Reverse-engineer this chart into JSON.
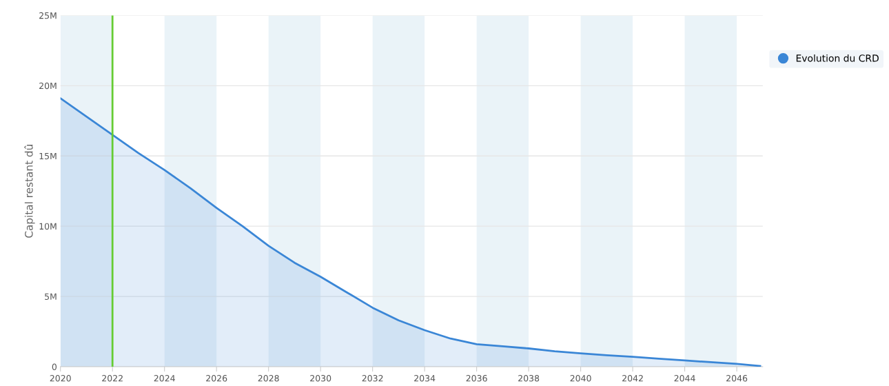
{
  "chart_data": {
    "type": "area",
    "ylabel": "Capital restant dû",
    "x": [
      2020,
      2021,
      2022,
      2023,
      2024,
      2025,
      2026,
      2027,
      2028,
      2029,
      2030,
      2031,
      2032,
      2033,
      2034,
      2035,
      2036,
      2037,
      2038,
      2039,
      2040,
      2041,
      2042,
      2043,
      2044,
      2045,
      2046,
      2046.9
    ],
    "series": [
      {
        "name": "Evolution du CRD",
        "color": "#3a86d6",
        "values": [
          19.1,
          17.8,
          16.5,
          15.2,
          14.0,
          12.7,
          11.3,
          10.0,
          8.6,
          7.4,
          6.4,
          5.3,
          4.2,
          3.3,
          2.6,
          2.0,
          1.6,
          1.45,
          1.3,
          1.1,
          0.95,
          0.82,
          0.7,
          0.57,
          0.45,
          0.32,
          0.2,
          0.05
        ]
      }
    ],
    "xlim": [
      2020,
      2047
    ],
    "xticks": [
      2020,
      2022,
      2024,
      2026,
      2028,
      2030,
      2032,
      2034,
      2036,
      2038,
      2040,
      2042,
      2044,
      2046
    ],
    "ylim": [
      0,
      25
    ],
    "yticks": [
      0,
      {
        "value": 5,
        "label": "5M"
      },
      {
        "value": 10,
        "label": "10M"
      },
      {
        "value": 15,
        "label": "15M"
      },
      {
        "value": 20,
        "label": "20M"
      },
      {
        "value": 25,
        "label": "25M"
      }
    ],
    "bands": [
      {
        "axis": "x",
        "from": 2020,
        "to": 2022,
        "color": "#eaf3f8"
      },
      {
        "axis": "x",
        "from": 2024,
        "to": 2026,
        "color": "#eaf3f8"
      },
      {
        "axis": "x",
        "from": 2028,
        "to": 2030,
        "color": "#eaf3f8"
      },
      {
        "axis": "x",
        "from": 2032,
        "to": 2034,
        "color": "#eaf3f8"
      },
      {
        "axis": "x",
        "from": 2036,
        "to": 2038,
        "color": "#eaf3f8"
      },
      {
        "axis": "x",
        "from": 2040,
        "to": 2042,
        "color": "#eaf3f8"
      },
      {
        "axis": "x",
        "from": 2044,
        "to": 2046,
        "color": "#eaf3f8"
      }
    ],
    "ref_lines": [
      {
        "axis": "x",
        "value": 2022,
        "color": "#66cc33"
      }
    ],
    "grid": "y",
    "legend": "top right",
    "marker": "none",
    "line_style": "solid"
  }
}
